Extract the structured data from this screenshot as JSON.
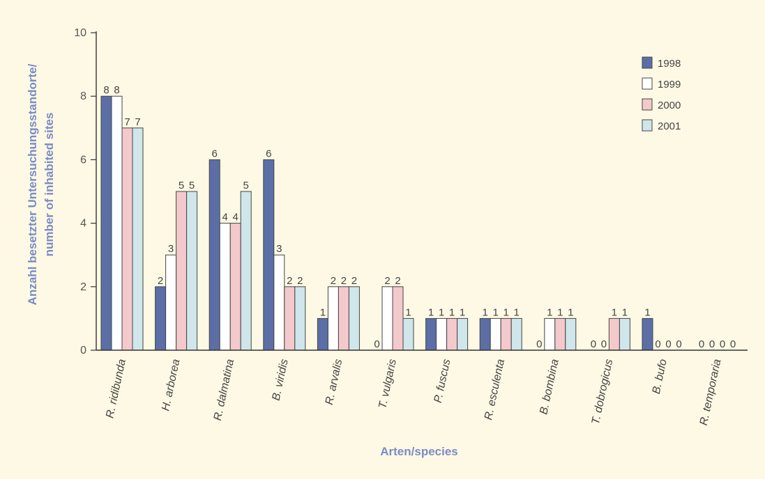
{
  "chart_data": {
    "type": "bar",
    "categories": [
      "R. ridibunda",
      "H. arborea",
      "R. dalmatina",
      "B. viridis",
      "R. arvalis",
      "T. vulgaris",
      "P. fuscus",
      "R. esculenta",
      "B. bombina",
      "T. dobrogicus",
      "B. bufo",
      "R. temporaria"
    ],
    "series": [
      {
        "name": "1998",
        "color": "#5b6fa6",
        "values": [
          8,
          2,
          6,
          6,
          1,
          0,
          1,
          1,
          0,
          0,
          1,
          0
        ]
      },
      {
        "name": "1999",
        "color": "#ffffff",
        "values": [
          8,
          3,
          4,
          3,
          2,
          2,
          1,
          1,
          1,
          0,
          0,
          0
        ]
      },
      {
        "name": "2000",
        "color": "#f4c9cc",
        "values": [
          7,
          5,
          4,
          2,
          2,
          2,
          1,
          1,
          1,
          1,
          0,
          0
        ]
      },
      {
        "name": "2001",
        "color": "#cfe6ea",
        "values": [
          7,
          5,
          5,
          2,
          2,
          1,
          1,
          1,
          1,
          1,
          0,
          0
        ]
      }
    ],
    "ylim": [
      0,
      10
    ],
    "yticks": [
      0,
      2,
      4,
      6,
      8,
      10
    ],
    "ylabel_line1": "Anzahl besetzter Untersuchungsstandorte/",
    "ylabel_line2": "number of inhabited sites",
    "xlabel": "Arten/species",
    "legend_position": "top-right",
    "grid": false
  }
}
